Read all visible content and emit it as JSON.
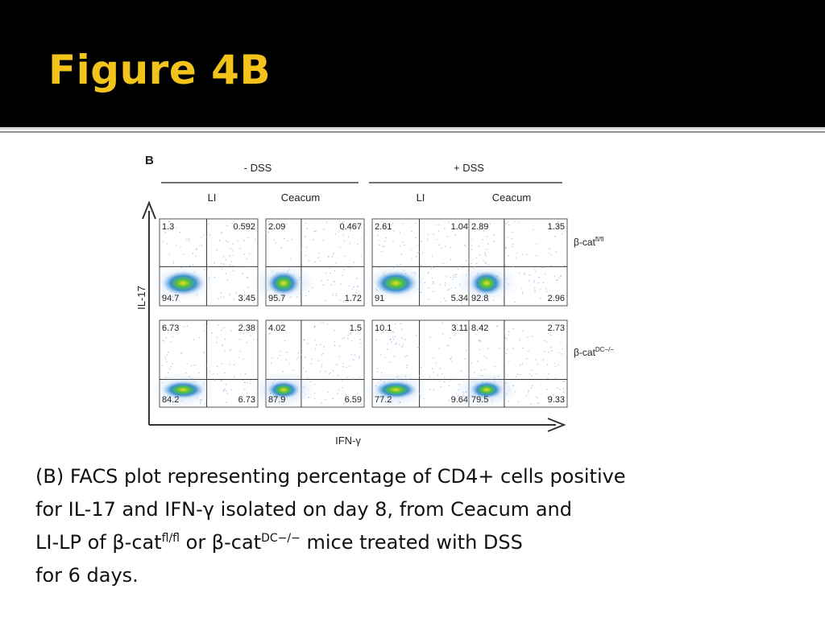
{
  "slide": {
    "title": "Figure 4B"
  },
  "figure": {
    "panel_letter": "B",
    "groups": [
      "- DSS",
      "+ DSS"
    ],
    "tissues": [
      "LI",
      "Ceacum",
      "LI",
      "Ceacum"
    ],
    "row_labels": [
      {
        "base": "β-cat",
        "sup": "fl/fl"
      },
      {
        "base": "β-cat",
        "sup": "DC−/−"
      }
    ],
    "y_axis_label": "IL-17",
    "x_axis_label": "IFN-γ",
    "quadrants": [
      [
        [
          "1.3",
          "0.592",
          "94.7",
          "3.45"
        ],
        [
          "2.09",
          "0.467",
          "95.7",
          "1.72"
        ],
        [
          "2.61",
          "1.04",
          "91",
          "5.34"
        ],
        [
          "2.89",
          "1.35",
          "92.8",
          "2.96"
        ]
      ],
      [
        [
          "6.73",
          "2.38",
          "84.2",
          "6.73"
        ],
        [
          "4.02",
          "1.5",
          "87.9",
          "6.59"
        ],
        [
          "10.1",
          "3.11",
          "77.2",
          "9.64"
        ],
        [
          "8.42",
          "2.73",
          "79.5",
          "9.33"
        ]
      ]
    ]
  },
  "caption": {
    "line1": "(B) FACS plot representing percentage of CD4+ cells positive",
    "line2": "for IL-17 and IFN-γ isolated on day 8, from Ceacum and",
    "line3_a": "LI-LP of β-cat",
    "line3_sup1": "fl/fl",
    "line3_b": " or β-cat",
    "line3_sup2": "DC−/−",
    "line3_c": " mice treated with DSS",
    "line4": "for 6 days."
  }
}
